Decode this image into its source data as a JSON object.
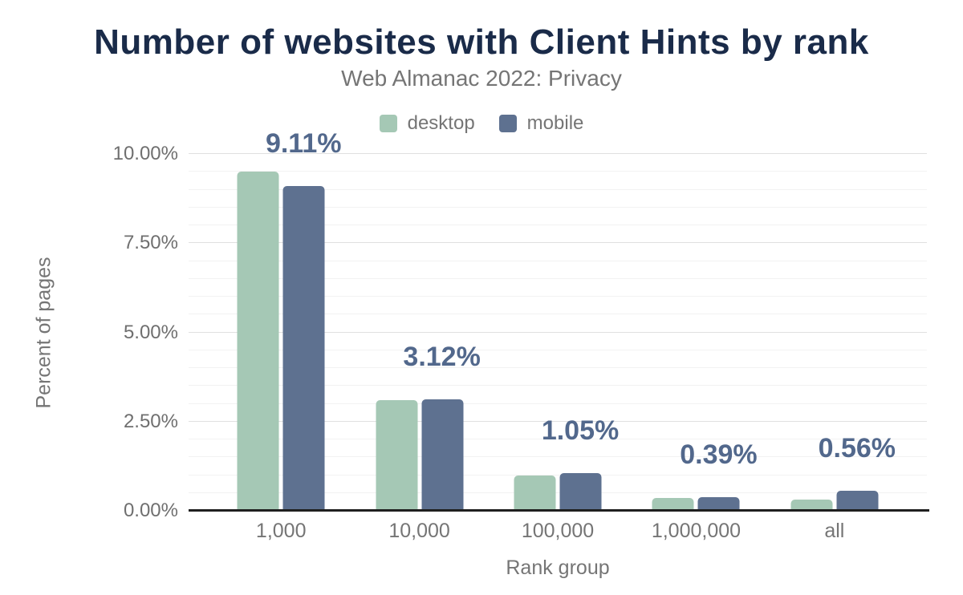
{
  "title": "Number of websites with Client Hints by rank",
  "subtitle": "Web Almanac 2022: Privacy",
  "legend": [
    {
      "label": "desktop",
      "color": "#a5c8b5"
    },
    {
      "label": "mobile",
      "color": "#5e7190"
    }
  ],
  "y_axis": {
    "title": "Percent of pages",
    "ticks": [
      "10.00%",
      "7.50%",
      "5.00%",
      "2.50%",
      "0.00%"
    ]
  },
  "x_axis": {
    "title": "Rank group",
    "categories": [
      "1,000",
      "10,000",
      "100,000",
      "1,000,000",
      "all"
    ]
  },
  "colors": {
    "title_navy": "#1a2b49",
    "text_gray": "#757575",
    "tick_gray": "#6f6f6f",
    "desktop": "#a5c8b5",
    "mobile": "#5e7190",
    "value_label": "#52688c",
    "axis_line": "#1f1f1f",
    "gridline_minor": "#f2f2f2",
    "gridline_major": "#e0e0e0"
  },
  "chart_data": {
    "type": "bar",
    "categories": [
      "1,000",
      "10,000",
      "100,000",
      "1,000,000",
      "all"
    ],
    "series": [
      {
        "name": "desktop",
        "values": [
          9.5,
          3.1,
          1.0,
          0.37,
          0.32
        ],
        "color": "#a5c8b5"
      },
      {
        "name": "mobile",
        "values": [
          9.11,
          3.12,
          1.05,
          0.39,
          0.56
        ],
        "color": "#5e7190"
      }
    ],
    "annotations": {
      "series": "mobile",
      "labels": [
        "9.11%",
        "3.12%",
        "1.05%",
        "0.39%",
        "0.56%"
      ]
    },
    "title": "Number of websites with Client Hints by rank",
    "subtitle": "Web Almanac 2022: Privacy",
    "xlabel": "Rank group",
    "ylabel": "Percent of pages",
    "ylim": [
      0,
      10
    ],
    "y_tick_step": 2.5,
    "y_minor_step": 0.5,
    "grid": true,
    "legend_position": "top"
  }
}
